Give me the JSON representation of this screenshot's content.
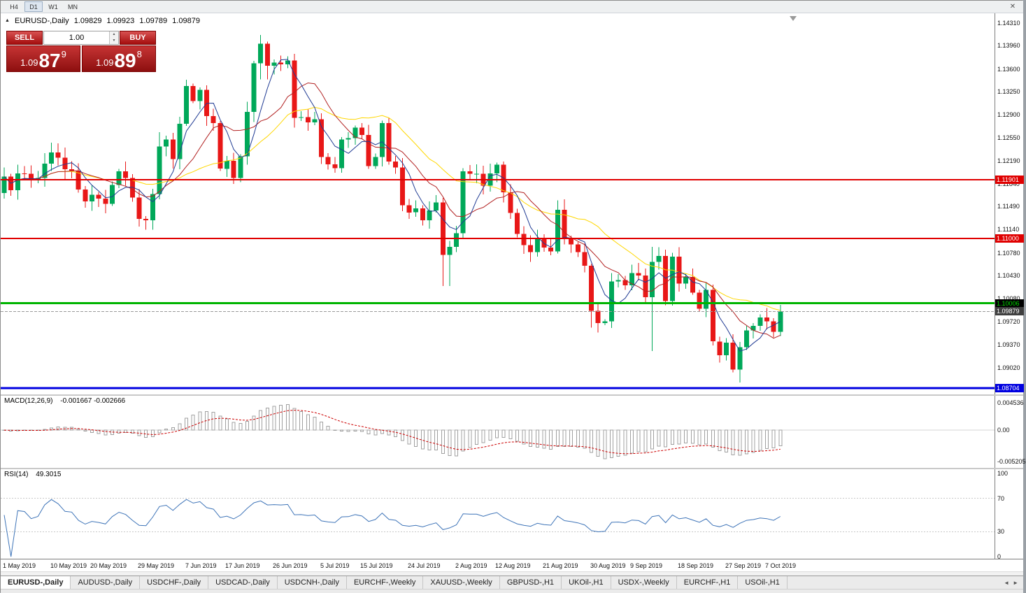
{
  "toolbar": {
    "timeframes": [
      "H4",
      "D1",
      "W1",
      "MN"
    ],
    "active_timeframe": "D1",
    "close_glyph": "✕"
  },
  "icons": {
    "collapse": "▲",
    "spin_up": "▲",
    "spin_down": "▼",
    "tab_left": "◄",
    "tab_right": "►"
  },
  "chart": {
    "header": {
      "symbol": "EURUSD-,Daily",
      "open": "1.09829",
      "high": "1.09923",
      "low": "1.09789",
      "close": "1.09879"
    },
    "trade_panel": {
      "sell_label": "SELL",
      "buy_label": "BUY",
      "volume": "1.00",
      "sell_price": {
        "small": "1.09",
        "big": "87",
        "sup": "9"
      },
      "buy_price": {
        "small": "1.09",
        "big": "89",
        "sup": "8"
      }
    }
  },
  "chart_data": {
    "type": "candlestick",
    "title": "EURUSD-,Daily",
    "x_labels": [
      {
        "text": "1 May 2019",
        "i": 0
      },
      {
        "text": "10 May 2019",
        "i": 7
      },
      {
        "text": "20 May 2019",
        "i": 13
      },
      {
        "text": "29 May 2019",
        "i": 20
      },
      {
        "text": "7 Jun 2019",
        "i": 27
      },
      {
        "text": "17 Jun 2019",
        "i": 33
      },
      {
        "text": "26 Jun 2019",
        "i": 40
      },
      {
        "text": "5 Jul 2019",
        "i": 47
      },
      {
        "text": "15 Jul 2019",
        "i": 53
      },
      {
        "text": "24 Jul 2019",
        "i": 60
      },
      {
        "text": "2 Aug 2019",
        "i": 67
      },
      {
        "text": "12 Aug 2019",
        "i": 73
      },
      {
        "text": "21 Aug 2019",
        "i": 80
      },
      {
        "text": "30 Aug 2019",
        "i": 87
      },
      {
        "text": "9 Sep 2019",
        "i": 93
      },
      {
        "text": "18 Sep 2019",
        "i": 100
      },
      {
        "text": "27 Sep 2019",
        "i": 107
      },
      {
        "text": "7 Oct 2019",
        "i": 113
      }
    ],
    "y_ticks": [
      "1.14310",
      "1.13960",
      "1.13600",
      "1.13250",
      "1.12900",
      "1.12550",
      "1.12190",
      "1.11840",
      "1.11490",
      "1.11140",
      "1.10780",
      "1.10430",
      "1.10080",
      "1.09720",
      "1.09370",
      "1.09020"
    ],
    "closes": [
      1.1195,
      1.1174,
      1.12,
      1.1199,
      1.119,
      1.1193,
      1.1215,
      1.1232,
      1.1224,
      1.1206,
      1.1204,
      1.1175,
      1.1157,
      1.1167,
      1.1161,
      1.1153,
      1.1182,
      1.1203,
      1.1193,
      1.1163,
      1.113,
      1.1128,
      1.1168,
      1.1241,
      1.1252,
      1.1222,
      1.1276,
      1.1334,
      1.1311,
      1.1328,
      1.1288,
      1.1277,
      1.1207,
      1.1219,
      1.1193,
      1.1226,
      1.1294,
      1.1369,
      1.1399,
      1.1365,
      1.137,
      1.1367,
      1.1373,
      1.1285,
      1.1286,
      1.1278,
      1.1283,
      1.1225,
      1.1214,
      1.1208,
      1.1252,
      1.1254,
      1.127,
      1.1259,
      1.1211,
      1.1225,
      1.1277,
      1.1218,
      1.1209,
      1.1151,
      1.114,
      1.1146,
      1.1128,
      1.1143,
      1.1155,
      1.1075,
      1.1087,
      1.1108,
      1.1203,
      1.1199,
      1.1199,
      1.1181,
      1.12,
      1.1213,
      1.1171,
      1.1139,
      1.1107,
      1.109,
      1.1079,
      1.1099,
      1.1086,
      1.108,
      1.1144,
      1.1101,
      1.1091,
      1.1079,
      1.1058,
      1.0989,
      1.097,
      1.0973,
      1.1034,
      1.1036,
      1.1028,
      1.1047,
      1.1043,
      1.101,
      1.1064,
      1.1073,
      1.1004,
      1.1072,
      1.1031,
      1.1041,
      1.1017,
      1.0992,
      1.1021,
      1.0942,
      1.0921,
      1.094,
      1.0899,
      1.0933,
      1.0959,
      1.0966,
      1.0979,
      1.0973,
      1.0957,
      1.0988
    ],
    "first_open": 1.117,
    "extreme_overrides": {
      "23": [
        1.1263,
        1.116
      ],
      "38": [
        1.1412,
        1.1344
      ],
      "39": [
        1.1402,
        1.1344
      ],
      "65": [
        1.1162,
        1.1027
      ],
      "66": [
        1.1096,
        1.1027
      ],
      "87": [
        1.1061,
        1.0963
      ],
      "96": [
        1.1087,
        1.0927
      ],
      "109": [
        1.0941,
        1.0879
      ]
    },
    "levels": [
      {
        "price": 1.11901,
        "label": "1.11901",
        "color": "#e00000",
        "badge_bg": "#e00000",
        "badge_fg": "#ffffff",
        "width": 2
      },
      {
        "price": 1.11,
        "label": "1.11000",
        "color": "#e00000",
        "badge_bg": "#e00000",
        "badge_fg": "#ffffff",
        "width": 2
      },
      {
        "price": 1.10006,
        "label": "1.10006",
        "color": "#00b400",
        "badge_bg": "#000000",
        "badge_fg": "#00d800",
        "width": 3
      },
      {
        "price": 1.08704,
        "label": "1.08704",
        "color": "#0000e0",
        "badge_bg": "#0000e0",
        "badge_fg": "#ffffff",
        "width": 3
      }
    ],
    "current_price": {
      "value": 1.09879,
      "label": "1.09879",
      "badge_bg": "#3f3f3f",
      "badge_fg": "#ffffff"
    },
    "colors": {
      "up": "#00a859",
      "down": "#e81717",
      "ma_fast": "#1f3a93",
      "ma_mid": "#b22222",
      "ma_slow": "#ffd700",
      "macd_bar": "#a0a0a0",
      "macd_signal": "#cc0000",
      "rsi_line": "#3e74b8"
    },
    "ma_periods": {
      "fast": 5,
      "mid": 10,
      "slow": 21
    },
    "macd": {
      "title": "MACD(12,26,9)",
      "values": "-0.001667 -0.002666",
      "fast": 12,
      "slow": 26,
      "signal": 9,
      "axis": [
        "0.004536",
        "0.00",
        "-0.005205"
      ],
      "axis_max": 0.004536,
      "axis_min": -0.005205
    },
    "rsi": {
      "title": "RSI(14)",
      "value": "49.3015",
      "period": 14,
      "axis": [
        "100",
        "70",
        "30",
        "0"
      ],
      "levels": [
        70,
        30
      ]
    }
  },
  "tabs": {
    "items": [
      "EURUSD-,Daily",
      "AUDUSD-,Daily",
      "USDCHF-,Daily",
      "USDCAD-,Daily",
      "USDCNH-,Daily",
      "EURCHF-,Weekly",
      "XAUUSD-,Weekly",
      "GBPUSD-,H1",
      "UKOil-,H1",
      "USDX-,Weekly",
      "EURCHF-,H1",
      "USOil-,H1"
    ],
    "active_index": 0
  }
}
